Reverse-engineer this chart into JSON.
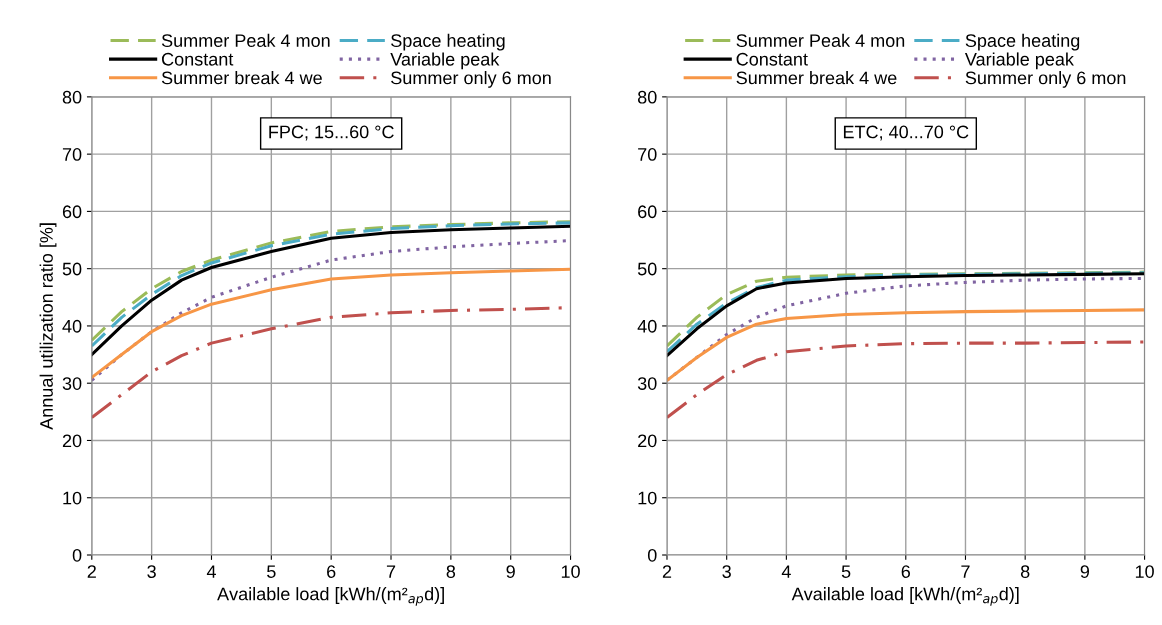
{
  "chart_data": [
    {
      "type": "line",
      "annotations": [
        "FPC; 15...60 °C"
      ],
      "xlabel": "Available load [kWh/(m²$_{ap}$d)]",
      "ylabel": "Annual utilization ratio [%]",
      "x": [
        2,
        2.5,
        3,
        3.5,
        4,
        5,
        6,
        7,
        8,
        9,
        10
      ],
      "xlim": [
        2,
        10
      ],
      "xticks": [
        2,
        3,
        4,
        5,
        6,
        7,
        8,
        9,
        10
      ],
      "ylim": [
        0,
        80
      ],
      "yticks": [
        0,
        10,
        20,
        30,
        40,
        50,
        60,
        70,
        80
      ],
      "grid": true,
      "legend": "top",
      "marker": "none",
      "series": [
        {
          "name": "Summer Peak 4 mon",
          "color": "#9bbb59",
          "line_style": "dashed",
          "values": [
            37.5,
            42.5,
            46.5,
            49.5,
            51.5,
            54.5,
            56.5,
            57.3,
            57.7,
            58,
            58.2
          ]
        },
        {
          "name": "Space heating",
          "color": "#4bacc6",
          "line_style": "dashed",
          "values": [
            36.5,
            41.5,
            45.5,
            48.8,
            51,
            54,
            56,
            57,
            57.5,
            57.8,
            58
          ]
        },
        {
          "name": "Constant",
          "color": "#000000",
          "line_style": "solid",
          "values": [
            35,
            40,
            44.5,
            48,
            50.2,
            53,
            55.3,
            56.3,
            56.8,
            57.1,
            57.4
          ]
        },
        {
          "name": "Variable peak",
          "color": "#8064a2",
          "line_style": "dotted",
          "values": [
            30.5,
            35,
            39,
            42.3,
            45,
            48.5,
            51.5,
            53,
            53.8,
            54.4,
            54.9
          ]
        },
        {
          "name": "Summer break 4 we",
          "color": "#f79646",
          "line_style": "solid",
          "values": [
            31,
            35,
            39,
            41.8,
            43.8,
            46.3,
            48.2,
            48.9,
            49.3,
            49.6,
            49.9
          ]
        },
        {
          "name": "Summer only 6 mon",
          "color": "#c0504d",
          "line_style": "dashdot",
          "values": [
            24,
            28,
            32,
            34.8,
            37,
            39.5,
            41.5,
            42.3,
            42.7,
            42.9,
            43.2
          ]
        }
      ]
    },
    {
      "type": "line",
      "annotations": [
        "ETC; 40...70 °C"
      ],
      "xlabel": "Available load [kWh/(m²$_{ap}$d)]",
      "x": [
        2,
        2.5,
        3,
        3.5,
        4,
        5,
        6,
        7,
        8,
        9,
        10
      ],
      "xlim": [
        2,
        10
      ],
      "xticks": [
        2,
        3,
        4,
        5,
        6,
        7,
        8,
        9,
        10
      ],
      "ylim": [
        0,
        80
      ],
      "yticks": [
        0,
        10,
        20,
        30,
        40,
        50,
        60,
        70,
        80
      ],
      "grid": true,
      "legend": "top",
      "marker": "none",
      "series": [
        {
          "name": "Summer Peak 4 mon",
          "color": "#9bbb59",
          "line_style": "dashed",
          "values": [
            36.5,
            41.5,
            45.5,
            47.8,
            48.5,
            48.9,
            49,
            49.1,
            49.2,
            49.3,
            49.4
          ]
        },
        {
          "name": "Space heating",
          "color": "#4bacc6",
          "line_style": "dashed",
          "values": [
            35.5,
            40.3,
            44,
            46.7,
            48,
            48.6,
            48.9,
            49,
            49.1,
            49.2,
            49.3
          ]
        },
        {
          "name": "Constant",
          "color": "#000000",
          "line_style": "solid",
          "values": [
            34.8,
            39.5,
            43.5,
            46.5,
            47.5,
            48.3,
            48.6,
            48.8,
            48.9,
            49,
            49.1
          ]
        },
        {
          "name": "Variable peak",
          "color": "#8064a2",
          "line_style": "dotted",
          "values": [
            30.5,
            34.5,
            38.5,
            41.5,
            43.5,
            45.7,
            47,
            47.6,
            48,
            48.2,
            48.3
          ]
        },
        {
          "name": "Summer break 4 we",
          "color": "#f79646",
          "line_style": "solid",
          "values": [
            30.5,
            34.5,
            38,
            40.3,
            41.3,
            42,
            42.3,
            42.5,
            42.6,
            42.7,
            42.8
          ]
        },
        {
          "name": "Summer only 6 mon",
          "color": "#c0504d",
          "line_style": "dashdot",
          "values": [
            24,
            28,
            31.5,
            34,
            35.5,
            36.5,
            36.9,
            37,
            37,
            37.1,
            37.2
          ]
        }
      ]
    }
  ]
}
